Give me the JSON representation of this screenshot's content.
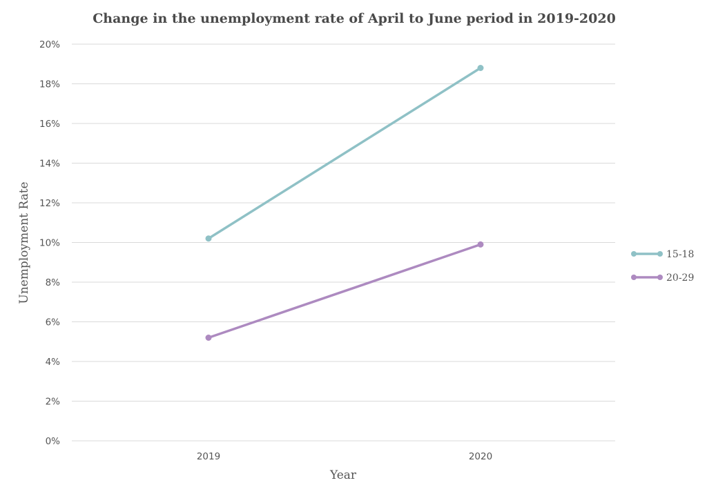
{
  "chart_data": {
    "type": "line",
    "title": "Change in the unemployment rate of April to June period in 2019-2020",
    "xlabel": "Year",
    "ylabel": "Unemployment Rate",
    "categories": [
      "2019",
      "2020"
    ],
    "ylim": [
      0,
      20
    ],
    "yticks": [
      0,
      2,
      4,
      6,
      8,
      10,
      12,
      14,
      16,
      18,
      20
    ],
    "ytick_labels": [
      "0%",
      "2%",
      "4%",
      "6%",
      "8%",
      "10%",
      "12%",
      "14%",
      "16%",
      "18%",
      "20%"
    ],
    "grid": true,
    "legend_position": "right",
    "series": [
      {
        "name": "15-18",
        "values": [
          10.2,
          18.8
        ],
        "color": "#8fc1c6"
      },
      {
        "name": "20-29",
        "values": [
          5.2,
          9.9
        ],
        "color": "#ad8ac0"
      }
    ]
  }
}
